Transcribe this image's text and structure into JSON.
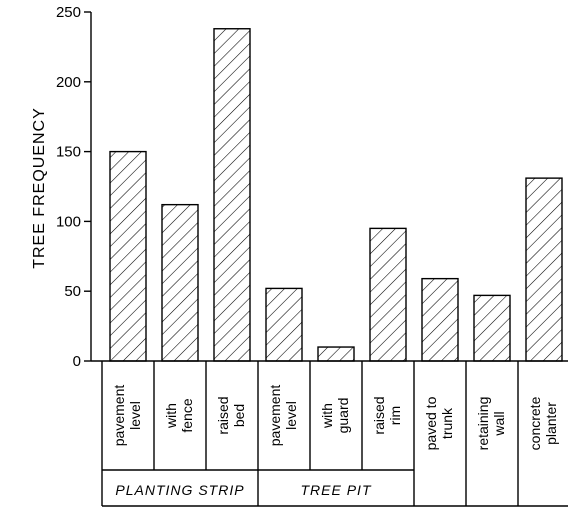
{
  "chart_data": {
    "type": "bar",
    "ylabel": "TREE FREQUENCY",
    "ylim": [
      0,
      250
    ],
    "yticks": [
      0,
      50,
      100,
      150,
      200,
      250
    ],
    "grid": false,
    "bar_fill": "diagonal hatch",
    "categories": [
      {
        "lines": [
          "pavement",
          "level"
        ],
        "value": 150
      },
      {
        "lines": [
          "with",
          "fence"
        ],
        "value": 112
      },
      {
        "lines": [
          "raised",
          "bed"
        ],
        "value": 238
      },
      {
        "lines": [
          "pavement",
          "level"
        ],
        "value": 52
      },
      {
        "lines": [
          "with",
          "guard"
        ],
        "value": 10
      },
      {
        "lines": [
          "raised",
          "rim"
        ],
        "value": 95
      },
      {
        "lines": [
          "paved to",
          "trunk"
        ],
        "value": 59
      },
      {
        "lines": [
          "retaining",
          "wall"
        ],
        "value": 47
      },
      {
        "lines": [
          "concrete",
          "planter"
        ],
        "value": 131
      }
    ],
    "groups": [
      {
        "label": "PLANTING STRIP",
        "members": [
          0,
          1,
          2
        ]
      },
      {
        "label": "TREE PIT",
        "members": [
          3,
          4,
          5
        ]
      }
    ]
  }
}
